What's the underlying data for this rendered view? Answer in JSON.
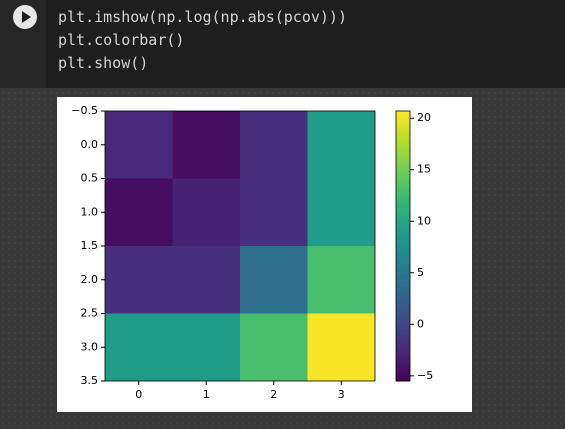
{
  "code": {
    "lines": [
      "plt.imshow(np.log(np.abs(pcov)))",
      "plt.colorbar()",
      "plt.show()"
    ]
  },
  "chart_data": {
    "type": "heatmap",
    "colormap": "viridis",
    "values": [
      [
        -2.5,
        -4.5,
        -2,
        9
      ],
      [
        -4.5,
        -3,
        -2,
        9
      ],
      [
        -2,
        -2,
        4,
        13
      ],
      [
        9,
        9,
        13,
        20.5
      ]
    ],
    "xlim": [
      -0.5,
      3.5
    ],
    "xticks": [
      0,
      1,
      2,
      3
    ],
    "ylim": [
      -0.5,
      3.5
    ],
    "y_inverted": true,
    "yticks": [
      {
        "value": -0.5,
        "label": "−0.5"
      },
      {
        "value": 0,
        "label": "0.0"
      },
      0.5,
      {
        "value": 1,
        "label": "1.0"
      },
      1.5,
      {
        "value": 2,
        "label": "2.0"
      },
      2.5,
      {
        "value": 3,
        "label": "3.0"
      },
      3.5
    ],
    "colorbar": {
      "lim": [
        -5.5,
        20.7
      ],
      "ticks": [
        {
          "value": -5,
          "label": "−5"
        },
        0,
        5,
        10,
        15,
        20
      ]
    }
  }
}
